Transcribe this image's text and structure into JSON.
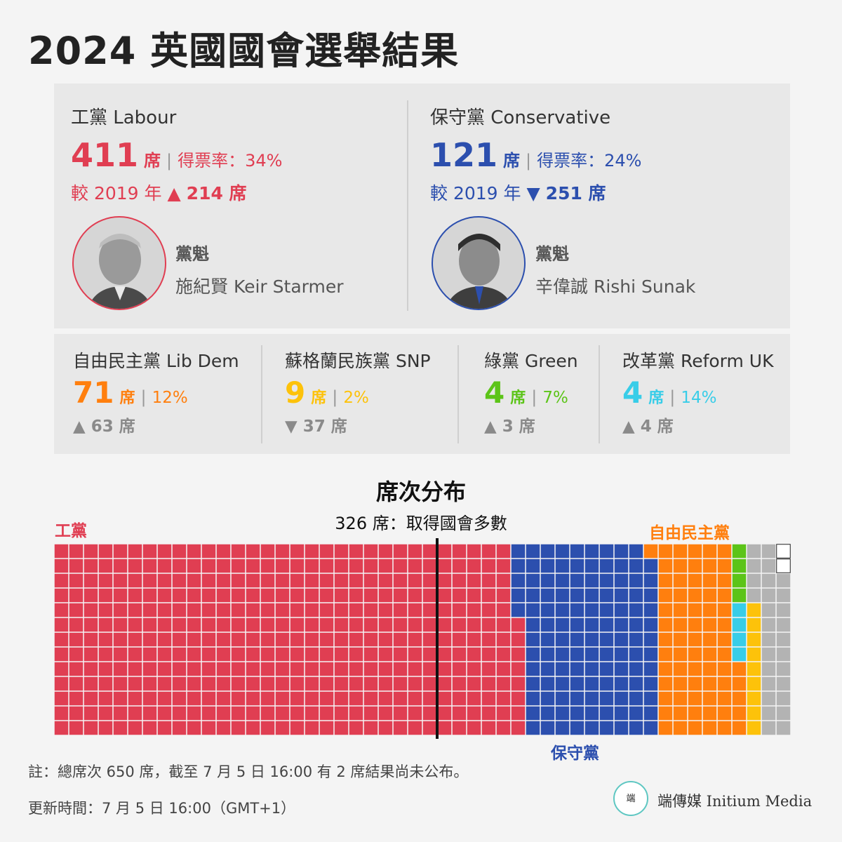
{
  "title": "2024 英國國會選舉結果",
  "colors": {
    "labour": "#e03e52",
    "conservative": "#2c4fae",
    "libdem": "#ff7f0e",
    "snp": "#fdc20a",
    "green": "#5cc418",
    "reform": "#38cde8",
    "other": "#b3b3b3",
    "undeclared": "#ffffff"
  },
  "major_parties": [
    {
      "name": "工黨 Labour",
      "seats": "411",
      "seat_unit": "席",
      "share": "得票率：34%",
      "change_prefix": "較 2019 年",
      "change_arrow": "▲",
      "change_value": "214 席",
      "leader_role": "黨魁",
      "leader_name": "施紀賢 Keir Starmer",
      "leader_photo": "portrait-icon"
    },
    {
      "name": "保守黨 Conservative",
      "seats": "121",
      "seat_unit": "席",
      "share": "得票率：24%",
      "change_prefix": "較 2019 年",
      "change_arrow": "▼",
      "change_value": "251 席",
      "leader_role": "黨魁",
      "leader_name": "辛偉誠 Rishi Sunak",
      "leader_photo": "portrait-icon"
    }
  ],
  "minor_parties": [
    {
      "name": "自由民主黨 Lib Dem",
      "seats": "71",
      "seat_unit": "席",
      "share": "12%",
      "change": "▲ 63 席"
    },
    {
      "name": "蘇格蘭民族黨 SNP",
      "seats": "9",
      "seat_unit": "席",
      "share": "2%",
      "change": "▼ 37 席"
    },
    {
      "name": "綠黨 Green",
      "seats": "4",
      "seat_unit": "席",
      "share": "7%",
      "change": "▲ 3 席"
    },
    {
      "name": "改革黨 Reform UK",
      "seats": "4",
      "seat_unit": "席",
      "share": "14%",
      "change": "▲ 4 席"
    }
  ],
  "distribution": {
    "title": "席次分布",
    "majority_label": "326 席：取得國會多數",
    "labels": {
      "labour": "工黨",
      "conservative": "保守黨",
      "libdem": "自由民主黨"
    }
  },
  "chart_data": {
    "type": "waffle",
    "title": "席次分布",
    "total": 650,
    "rows": 13,
    "majority_line": 326,
    "segments": [
      {
        "key": "labour",
        "value": 411
      },
      {
        "key": "conservative",
        "value": 121
      },
      {
        "key": "libdem",
        "value": 71
      },
      {
        "key": "reform",
        "value": 4
      },
      {
        "key": "green",
        "value": 4
      },
      {
        "key": "snp",
        "value": 9
      },
      {
        "key": "other",
        "value": 28
      },
      {
        "key": "undeclared",
        "value": 2
      }
    ]
  },
  "footer": {
    "note": "註：總席次 650 席，截至 7 月 5 日 16:00 有 2 席結果尚未公布。",
    "updated": "更新時間：7 月 5 日 16:00（GMT+1）",
    "logo_text": "端傳媒 Initium Media",
    "logo_mark": "端"
  }
}
